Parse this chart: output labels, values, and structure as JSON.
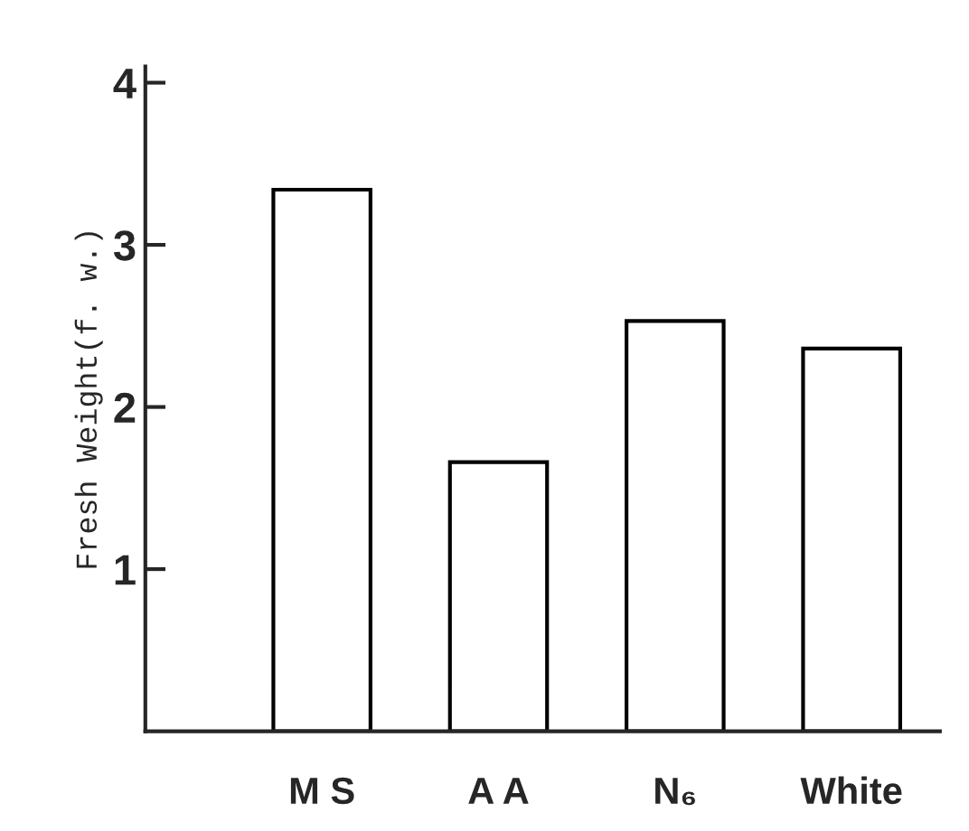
{
  "chart_data": {
    "type": "bar",
    "ylabel": "Fresh Weight(f. w.)",
    "categories": [
      "M S",
      "A A",
      "N₆",
      "White"
    ],
    "values": [
      3.34,
      1.66,
      2.53,
      2.36
    ],
    "colors": [
      "#ffffff",
      "#ffffff",
      "#ffffff",
      "#ffffff"
    ],
    "ylim": [
      0,
      4.1
    ],
    "yticks": [
      1,
      2,
      3,
      4
    ],
    "grid": false,
    "legend": false
  }
}
